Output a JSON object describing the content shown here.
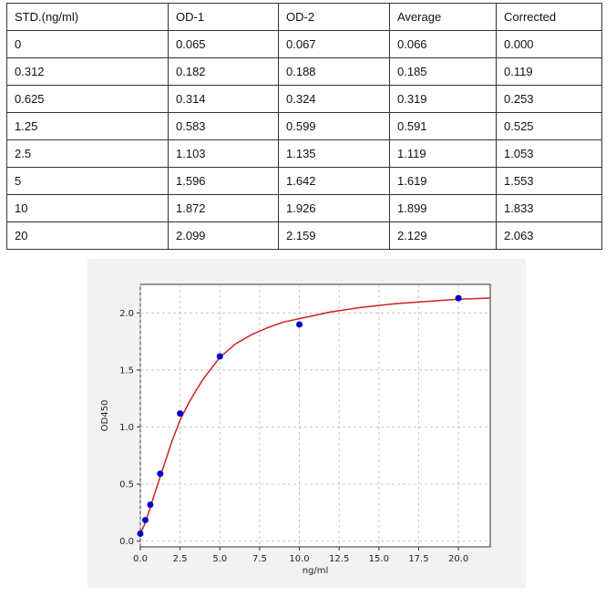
{
  "table": {
    "headers": [
      "STD.(ng/ml)",
      "OD-1",
      "OD-2",
      "Average",
      "Corrected"
    ],
    "rows": [
      [
        "0",
        "0.065",
        "0.067",
        "0.066",
        "0.000"
      ],
      [
        "0.312",
        "0.182",
        "0.188",
        "0.185",
        "0.119"
      ],
      [
        "0.625",
        "0.314",
        "0.324",
        "0.319",
        "0.253"
      ],
      [
        "1.25",
        "0.583",
        "0.599",
        "0.591",
        "0.525"
      ],
      [
        "2.5",
        "1.103",
        "1.135",
        "1.119",
        "1.053"
      ],
      [
        "5",
        "1.596",
        "1.642",
        "1.619",
        "1.553"
      ],
      [
        "10",
        "1.872",
        "1.926",
        "1.899",
        "1.833"
      ],
      [
        "20",
        "2.099",
        "2.159",
        "2.129",
        "2.063"
      ]
    ]
  },
  "chart_data": {
    "type": "scatter",
    "xlabel": "ng/ml",
    "ylabel": "OD450",
    "xlim": [
      0,
      22
    ],
    "ylim": [
      -0.05,
      2.25
    ],
    "xticks": [
      "0.0",
      "2.5",
      "5.0",
      "7.5",
      "10.0",
      "12.5",
      "15.0",
      "17.5",
      "20.0"
    ],
    "yticks": [
      "0.0",
      "0.5",
      "1.0",
      "1.5",
      "2.0"
    ],
    "grid": true,
    "points": {
      "x": [
        0,
        0.312,
        0.625,
        1.25,
        2.5,
        5,
        10,
        20
      ],
      "y": [
        0.066,
        0.185,
        0.319,
        0.591,
        1.119,
        1.619,
        1.899,
        2.129
      ],
      "color": "#0000cc"
    },
    "fit_curve": {
      "color": "#cc2222",
      "x": [
        0,
        0.25,
        0.5,
        0.75,
        1,
        1.5,
        2,
        2.5,
        3,
        3.5,
        4,
        5,
        6,
        7,
        8,
        9,
        10,
        12,
        14,
        16,
        18,
        20,
        22
      ],
      "y": [
        0.07,
        0.14,
        0.24,
        0.35,
        0.46,
        0.67,
        0.88,
        1.06,
        1.2,
        1.32,
        1.43,
        1.61,
        1.73,
        1.81,
        1.87,
        1.92,
        1.95,
        2.01,
        2.05,
        2.08,
        2.1,
        2.12,
        2.13
      ]
    }
  }
}
